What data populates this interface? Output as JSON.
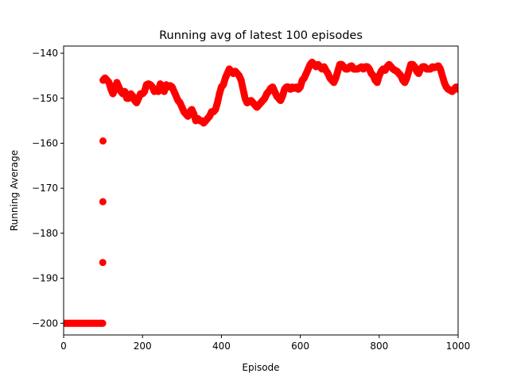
{
  "chart_data": {
    "type": "scatter",
    "title": "Running avg of latest 100 episodes",
    "xlabel": "Episode",
    "ylabel": "Running Average",
    "xlim": [
      0,
      1000
    ],
    "ylim": [
      -202.6,
      -138.4
    ],
    "xticks": [
      0,
      200,
      400,
      600,
      800,
      1000
    ],
    "yticks": [
      -200,
      -190,
      -180,
      -170,
      -160,
      -150,
      -140
    ],
    "grid": false,
    "color": "#ff0000",
    "series": [
      {
        "x": [
          0,
          10,
          20,
          30,
          40,
          50,
          60,
          70,
          80,
          90,
          99,
          100,
          105,
          110,
          115,
          120,
          125,
          130,
          135,
          140,
          145,
          150,
          155,
          160,
          165,
          170,
          175,
          180,
          185,
          190,
          195,
          200,
          205,
          210,
          215,
          220,
          225,
          230,
          235,
          240,
          245,
          250,
          255,
          260,
          265,
          270,
          275,
          280,
          285,
          290,
          295,
          300,
          305,
          310,
          315,
          320,
          325,
          330,
          335,
          340,
          345,
          350,
          355,
          360,
          365,
          370,
          375,
          380,
          385,
          390,
          395,
          400,
          405,
          410,
          415,
          420,
          425,
          430,
          435,
          440,
          445,
          450,
          455,
          460,
          465,
          470,
          475,
          480,
          485,
          490,
          495,
          500,
          505,
          510,
          515,
          520,
          525,
          530,
          535,
          540,
          545,
          550,
          555,
          560,
          565,
          570,
          575,
          580,
          585,
          590,
          595,
          600,
          605,
          610,
          615,
          620,
          625,
          630,
          635,
          640,
          645,
          650,
          655,
          660,
          665,
          670,
          675,
          680,
          685,
          690,
          695,
          700,
          705,
          710,
          715,
          720,
          725,
          730,
          735,
          740,
          745,
          750,
          755,
          760,
          765,
          770,
          775,
          780,
          785,
          790,
          795,
          800,
          805,
          810,
          815,
          820,
          825,
          830,
          835,
          840,
          845,
          850,
          855,
          860,
          865,
          870,
          875,
          880,
          885,
          890,
          895,
          900,
          905,
          910,
          915,
          920,
          925,
          930,
          935,
          940,
          945,
          950,
          955,
          960,
          965,
          970,
          975,
          980,
          985,
          990,
          995,
          1000
        ],
        "y": [
          -200,
          -200,
          -200,
          -200,
          -200,
          -200,
          -200,
          -200,
          -200,
          -200,
          -200,
          -146,
          -145.5,
          -146,
          -146.5,
          -148,
          -149,
          -148,
          -146.5,
          -147.5,
          -148.5,
          -149,
          -148.5,
          -150,
          -150,
          -149,
          -149.5,
          -150.5,
          -151,
          -150,
          -149,
          -149,
          -148.5,
          -147,
          -146.8,
          -147,
          -147.5,
          -148.5,
          -148,
          -148.5,
          -146.8,
          -148,
          -148.5,
          -147,
          -147.5,
          -147.2,
          -147.5,
          -148.5,
          -149.5,
          -150.5,
          -151,
          -152,
          -153,
          -153.5,
          -154,
          -153,
          -152.5,
          -153.5,
          -155,
          -154.5,
          -155,
          -155,
          -155.5,
          -155,
          -154.5,
          -154,
          -153,
          -153,
          -152.5,
          -151,
          -149,
          -147.5,
          -147,
          -145.5,
          -144.5,
          -143.5,
          -144,
          -144.5,
          -144,
          -144.5,
          -145,
          -146,
          -148,
          -150,
          -151,
          -150.8,
          -150.5,
          -151,
          -151.5,
          -152,
          -151.5,
          -151,
          -150.5,
          -150,
          -149,
          -148.5,
          -147.8,
          -147.5,
          -148.5,
          -149.5,
          -150,
          -150.5,
          -149.5,
          -148,
          -147.5,
          -147.5,
          -148,
          -147.5,
          -147.8,
          -147.5,
          -148,
          -147.5,
          -146,
          -145.5,
          -144.5,
          -143.5,
          -142.5,
          -142,
          -142.5,
          -143,
          -142.5,
          -143,
          -143.5,
          -143,
          -143.8,
          -144.5,
          -145.5,
          -146,
          -146.5,
          -145.5,
          -144,
          -142.5,
          -142.5,
          -143,
          -143.5,
          -143.5,
          -143,
          -142.8,
          -143.5,
          -143.5,
          -143.5,
          -143.3,
          -143,
          -143.5,
          -143,
          -143,
          -143.5,
          -144.5,
          -145,
          -146,
          -146.5,
          -145,
          -144,
          -143.5,
          -143.8,
          -143,
          -142.5,
          -143,
          -143.5,
          -143.8,
          -144,
          -144.5,
          -145,
          -146,
          -146.5,
          -145.5,
          -144,
          -142.5,
          -142.5,
          -143,
          -144,
          -144.5,
          -143.5,
          -143,
          -143,
          -143.5,
          -143.5,
          -143.5,
          -143,
          -143.2,
          -143,
          -142.8,
          -143.5,
          -145,
          -146.5,
          -147.5,
          -148,
          -148.2,
          -148.5,
          -148,
          -147.5,
          -148
        ]
      }
    ]
  }
}
